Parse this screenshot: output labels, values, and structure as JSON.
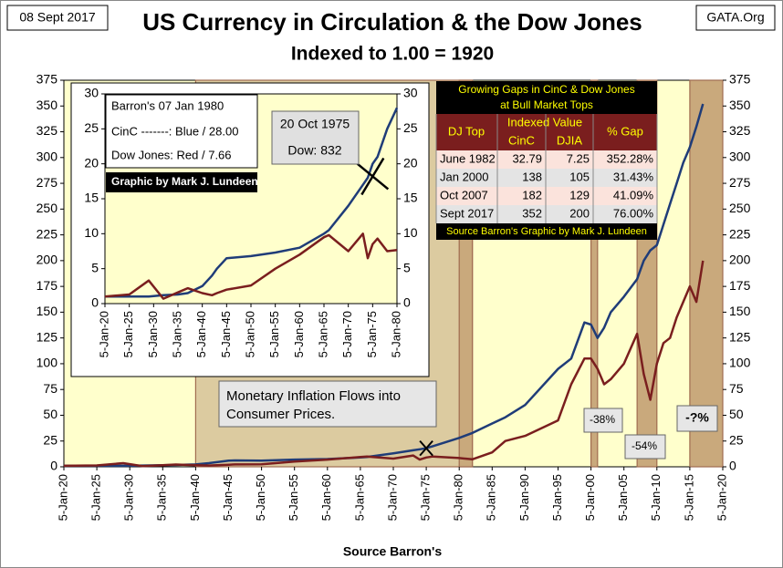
{
  "header": {
    "date": "08 Sept 2017",
    "site": "GATA.Org",
    "title": "US Currency in Circulation & the Dow Jones",
    "subtitle": "Indexed to 1.00 = 1920",
    "x_label": "Source Barron's"
  },
  "chart_data": [
    {
      "type": "line",
      "x": [
        1920,
        1925,
        1929,
        1932,
        1935,
        1937,
        1940,
        1942,
        1945,
        1946,
        1950,
        1955,
        1960,
        1965,
        1966,
        1970,
        1973,
        1974,
        1975,
        1976,
        1980,
        1982,
        1985,
        1987,
        1990,
        1995,
        1997,
        1999,
        2000,
        2001,
        2002,
        2003,
        2005,
        2007,
        2008,
        2009,
        2010,
        2011,
        2012,
        2013,
        2014,
        2015,
        2016,
        2017
      ],
      "series": [
        {
          "name": "CinC",
          "color": "#1f3c78",
          "values": [
            1,
            1,
            1,
            1.2,
            1.5,
            1.8,
            2.3,
            3.5,
            6,
            6.2,
            6,
            7,
            7.5,
            9,
            9.5,
            13,
            16,
            17,
            18,
            20,
            28,
            32.79,
            42,
            48,
            60,
            95,
            105,
            140,
            138,
            125,
            135,
            150,
            165,
            182,
            200,
            210,
            215,
            235,
            255,
            275,
            295,
            310,
            330,
            352
          ]
        },
        {
          "name": "Dow Jones",
          "color": "#7a1e1e",
          "values": [
            1,
            1.3,
            3.5,
            0.6,
            1.6,
            2.2,
            1.5,
            1.2,
            2,
            2.3,
            2.5,
            5,
            7,
            9.5,
            10,
            8,
            11,
            7,
            9,
            10,
            8.5,
            7.25,
            14,
            25,
            30,
            45,
            80,
            105,
            105,
            95,
            80,
            85,
            100,
            129,
            90,
            65,
            100,
            120,
            125,
            145,
            160,
            175,
            160,
            200
          ]
        }
      ],
      "xlim": [
        1920,
        2020
      ],
      "xticks": [
        {
          "value": 1920,
          "label": "5-Jan-20"
        },
        {
          "value": 1925,
          "label": "5-Jan-25"
        },
        {
          "value": 1930,
          "label": "5-Jan-30"
        },
        {
          "value": 1935,
          "label": "5-Jan-35"
        },
        {
          "value": 1940,
          "label": "5-Jan-40"
        },
        {
          "value": 1945,
          "label": "5-Jan-45"
        },
        {
          "value": 1950,
          "label": "5-Jan-50"
        },
        {
          "value": 1955,
          "label": "5-Jan-55"
        },
        {
          "value": 1960,
          "label": "5-Jan-60"
        },
        {
          "value": 1965,
          "label": "5-Jan-65"
        },
        {
          "value": 1970,
          "label": "5-Jan-70"
        },
        {
          "value": 1975,
          "label": "5-Jan-75"
        },
        {
          "value": 1980,
          "label": "5-Jan-80"
        },
        {
          "value": 1985,
          "label": "5-Jan-85"
        },
        {
          "value": 1990,
          "label": "5-Jan-90"
        },
        {
          "value": 1995,
          "label": "5-Jan-95"
        },
        {
          "value": 2000,
          "label": "5-Jan-00"
        },
        {
          "value": 2005,
          "label": "5-Jan-05"
        },
        {
          "value": 2010,
          "label": "5-Jan-10"
        },
        {
          "value": 2015,
          "label": "5-Jan-15"
        },
        {
          "value": 2020,
          "label": "5-Jan-20"
        }
      ],
      "ylim": [
        0,
        375
      ],
      "yticks": [
        0,
        25,
        50,
        75,
        100,
        125,
        150,
        175,
        200,
        225,
        250,
        275,
        300,
        325,
        350,
        375
      ],
      "bands": [
        [
          1940,
          1982
        ],
        [
          1980,
          1982
        ],
        [
          2000,
          2001
        ],
        [
          2007,
          2010
        ],
        [
          2015,
          2020
        ]
      ],
      "annotations": [
        "Monetary Inflation Flows into",
        "Consumer Prices.",
        "-38%",
        "-54%",
        "-?%"
      ]
    },
    {
      "type": "line",
      "x": [
        1920,
        1925,
        1929,
        1932,
        1935,
        1937,
        1940,
        1942,
        1943,
        1945,
        1950,
        1955,
        1960,
        1965,
        1966,
        1970,
        1973,
        1974,
        1975,
        1976,
        1978,
        1980
      ],
      "series": [
        {
          "name": "CinC",
          "color": "#1f3c78",
          "values": [
            1,
            1,
            1,
            1.2,
            1.3,
            1.5,
            2.5,
            4,
            5,
            6.5,
            6.8,
            7.3,
            8,
            10,
            10.5,
            14,
            17,
            18,
            20,
            21,
            25,
            28
          ]
        },
        {
          "name": "Dow Jones",
          "color": "#7a1e1e",
          "values": [
            1,
            1.3,
            3.3,
            0.7,
            1.6,
            2.2,
            1.5,
            1.2,
            1.5,
            2,
            2.6,
            5,
            7,
            9.5,
            9.8,
            7.5,
            10,
            6.5,
            8.5,
            9.3,
            7.5,
            7.66
          ]
        }
      ],
      "xlim": [
        1920,
        1980
      ],
      "xticks": [
        {
          "value": 1920,
          "label": "5-Jan-20"
        },
        {
          "value": 1925,
          "label": "5-Jan-25"
        },
        {
          "value": 1930,
          "label": "5-Jan-30"
        },
        {
          "value": 1935,
          "label": "5-Jan-35"
        },
        {
          "value": 1940,
          "label": "5-Jan-40"
        },
        {
          "value": 1945,
          "label": "5-Jan-45"
        },
        {
          "value": 1950,
          "label": "5-Jan-50"
        },
        {
          "value": 1955,
          "label": "5-Jan-55"
        },
        {
          "value": 1960,
          "label": "5-Jan-60"
        },
        {
          "value": 1965,
          "label": "5-Jan-65"
        },
        {
          "value": 1970,
          "label": "5-Jan-70"
        },
        {
          "value": 1975,
          "label": "5-Jan-75"
        },
        {
          "value": 1980,
          "label": "5-Jan-80"
        }
      ],
      "ylim": [
        0,
        30
      ],
      "yticks": [
        0,
        5,
        10,
        15,
        20,
        25,
        30
      ],
      "annotations": [
        "Barron's 07 Jan 1980",
        "CinC -------: Blue / 28.00",
        "Dow Jones: Red /   7.66",
        "Graphic by Mark J. Lundeen",
        "20 Oct 1975",
        "Dow: 832"
      ]
    }
  ],
  "table": {
    "title": [
      "Growing Gaps in CinC & Dow Jones",
      "at Bull Market Tops"
    ],
    "columns": [
      "DJ Top",
      "Indexed Value",
      "% Gap"
    ],
    "subcolumns": [
      "CinC",
      "DJIA"
    ],
    "rows": [
      [
        "June 1982",
        "32.79",
        "7.25",
        "352.28%"
      ],
      [
        "Jan 2000",
        "138",
        "105",
        "31.43%"
      ],
      [
        "Oct 2007",
        "182",
        "129",
        "41.09%"
      ],
      [
        "Sept 2017",
        "352",
        "200",
        "76.00%"
      ]
    ],
    "source": "Source Barron's Graphic by Mark J. Lundeen"
  }
}
